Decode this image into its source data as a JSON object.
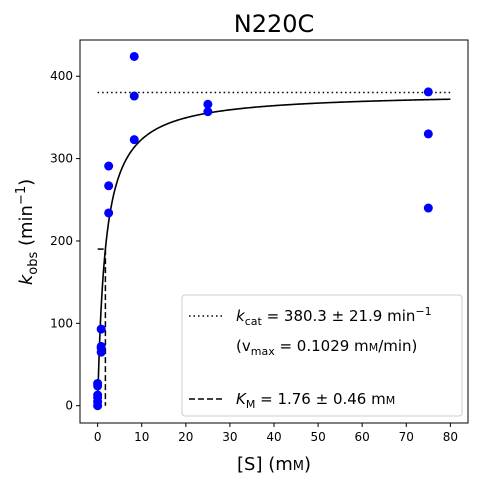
{
  "chart_data": {
    "type": "scatter",
    "title": "N220C",
    "xlabel": {
      "main": "[S] (m",
      "unit_sc": "M",
      "close": ")"
    },
    "ylabel": {
      "k": "k",
      "sub": "obs",
      "mid": " (min",
      "sup": "−1",
      "close": ")"
    },
    "xlim": [
      -4,
      84
    ],
    "ylim": [
      -21,
      444
    ],
    "xticks": [
      0,
      10,
      20,
      30,
      40,
      50,
      60,
      70,
      80
    ],
    "yticks": [
      0,
      100,
      200,
      300,
      400
    ],
    "colors": {
      "points": "#0000ff",
      "lines": "#000000"
    },
    "points": [
      [
        0,
        0
      ],
      [
        0,
        5
      ],
      [
        0,
        10
      ],
      [
        0,
        13
      ],
      [
        0,
        24
      ],
      [
        0,
        27
      ],
      [
        0.8,
        65
      ],
      [
        0.8,
        70
      ],
      [
        0.8,
        72
      ],
      [
        0.8,
        93
      ],
      [
        2.5,
        234
      ],
      [
        2.5,
        267
      ],
      [
        2.5,
        291
      ],
      [
        8.3,
        323
      ],
      [
        8.3,
        376
      ],
      [
        8.3,
        424
      ],
      [
        25,
        357
      ],
      [
        25,
        366
      ],
      [
        75,
        240
      ],
      [
        75,
        330
      ],
      [
        75,
        381
      ]
    ],
    "fit": {
      "kcat": 380.3,
      "km": 1.76,
      "x_range": [
        0,
        80
      ]
    },
    "kcat_line": {
      "y": 380.3,
      "x_range": [
        0,
        80
      ]
    },
    "km_line": {
      "x": 1.76,
      "y_top": 190.15,
      "x_start": 0
    },
    "legend": {
      "position": "lower-right",
      "kcat_k": "k",
      "kcat_sub": "cat",
      "kcat_text": " = 380.3 ± 21.9 min",
      "kcat_sup": "−1",
      "vmax_open": "(v",
      "vmax_sub": "max",
      "vmax_text": " = 0.1029 m",
      "vmax_unit_sc": "M",
      "vmax_close": "/min)",
      "km_k": "K",
      "km_sub": "M",
      "km_text": " = 1.76 ± 0.46 m",
      "km_unit_sc": "M"
    }
  }
}
